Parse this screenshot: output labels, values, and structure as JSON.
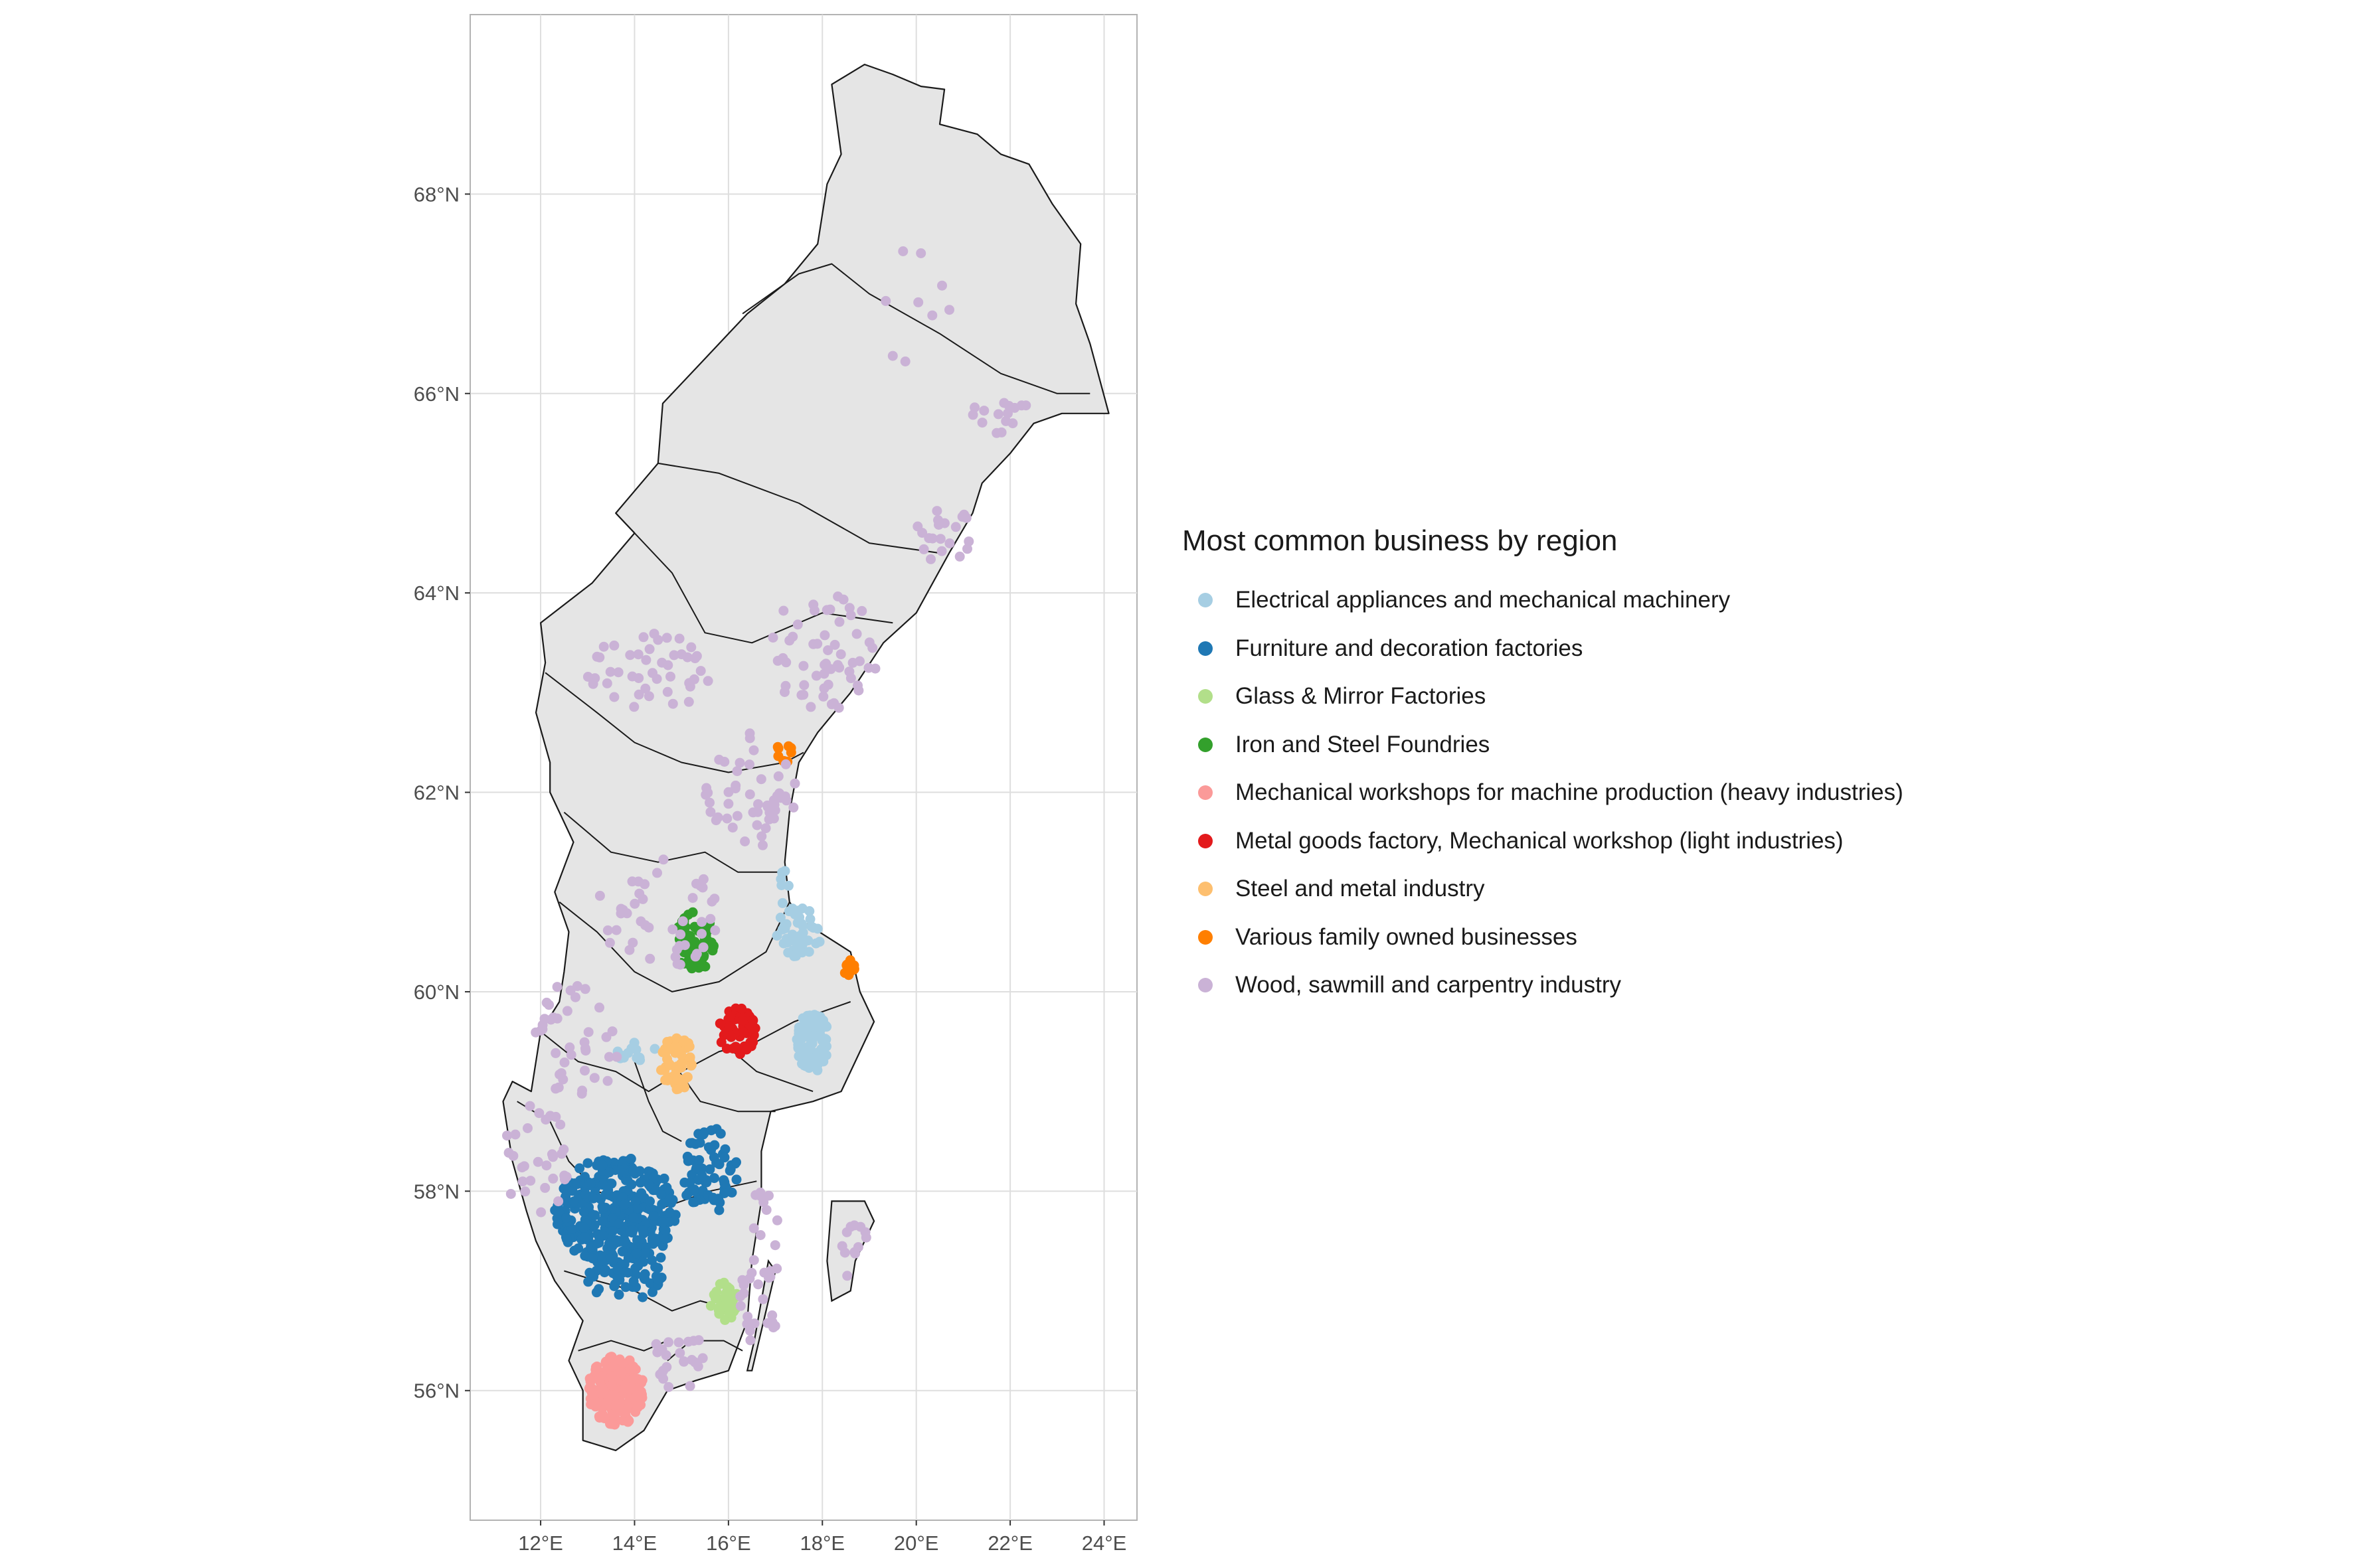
{
  "map": {
    "type": "scatter-map",
    "lon_range": [
      10.5,
      24.7
    ],
    "lat_range": [
      54.7,
      69.8
    ],
    "x_ticks": [
      {
        "value": 12,
        "label": "12°E"
      },
      {
        "value": 14,
        "label": "14°E"
      },
      {
        "value": 16,
        "label": "16°E"
      },
      {
        "value": 18,
        "label": "18°E"
      },
      {
        "value": 20,
        "label": "20°E"
      },
      {
        "value": 22,
        "label": "22°E"
      },
      {
        "value": 24,
        "label": "24°E"
      }
    ],
    "y_ticks": [
      {
        "value": 56,
        "label": "56°N"
      },
      {
        "value": 58,
        "label": "58°N"
      },
      {
        "value": 60,
        "label": "60°N"
      },
      {
        "value": 62,
        "label": "62°N"
      },
      {
        "value": 64,
        "label": "64°N"
      },
      {
        "value": 66,
        "label": "66°N"
      },
      {
        "value": 68,
        "label": "68°N"
      }
    ],
    "grid": true,
    "land_color": "#e5e5e5",
    "border_color": "#1a1a1a"
  },
  "legend": {
    "title": "Most common business by region",
    "position": "right",
    "items": [
      {
        "label": "Electrical appliances and mechanical machinery",
        "color": "#a6cee3"
      },
      {
        "label": "Furniture and decoration factories",
        "color": "#1f78b4"
      },
      {
        "label": "Glass & Mirror Factories",
        "color": "#b2df8a"
      },
      {
        "label": "Iron and Steel Foundries",
        "color": "#33a02c"
      },
      {
        "label": "Mechanical workshops for machine production (heavy industries)",
        "color": "#fb9a99"
      },
      {
        "label": "Metal goods factory, Mechanical workshop (light industries)",
        "color": "#e31a1c"
      },
      {
        "label": "Steel and metal industry",
        "color": "#fdbf6f"
      },
      {
        "label": "Various family owned businesses",
        "color": "#ff7f00"
      },
      {
        "label": "Wood, sawmill and carpentry industry",
        "color": "#cab2d6"
      }
    ]
  },
  "chart_data": {
    "type": "scatter",
    "x": "longitude",
    "y": "latitude",
    "series": [
      {
        "name": "Electrical appliances and mechanical machinery",
        "color": "#a6cee3",
        "clusters": [
          [
            17.8,
            59.5,
            0.35,
            0.3,
            90
          ],
          [
            17.5,
            60.6,
            0.5,
            0.25,
            45
          ],
          [
            14.0,
            59.4,
            0.45,
            0.1,
            12
          ],
          [
            17.2,
            61.1,
            0.1,
            0.25,
            6
          ]
        ]
      },
      {
        "name": "Furniture and decoration factories",
        "color": "#1f78b4",
        "clusters": [
          [
            13.6,
            57.8,
            1.3,
            0.55,
            330
          ],
          [
            15.6,
            58.2,
            0.6,
            0.45,
            70
          ],
          [
            13.8,
            57.2,
            0.9,
            0.3,
            60
          ]
        ]
      },
      {
        "name": "Glass & Mirror Factories",
        "color": "#b2df8a",
        "clusters": [
          [
            15.9,
            56.9,
            0.3,
            0.2,
            40
          ]
        ]
      },
      {
        "name": "Iron and Steel Foundries",
        "color": "#33a02c",
        "clusters": [
          [
            15.3,
            60.5,
            0.45,
            0.3,
            70
          ]
        ]
      },
      {
        "name": "Mechanical workshops for machine production (heavy industries)",
        "color": "#fb9a99",
        "clusters": [
          [
            13.6,
            56.0,
            0.6,
            0.35,
            190
          ]
        ]
      },
      {
        "name": "Metal goods factory, Mechanical workshop (light industries)",
        "color": "#e31a1c",
        "clusters": [
          [
            16.2,
            59.6,
            0.4,
            0.25,
            60
          ]
        ]
      },
      {
        "name": "Steel and metal industry",
        "color": "#fdbf6f",
        "clusters": [
          [
            14.9,
            59.3,
            0.35,
            0.3,
            60
          ]
        ]
      },
      {
        "name": "Various family owned businesses",
        "color": "#ff7f00",
        "clusters": [
          [
            18.6,
            60.2,
            0.12,
            0.12,
            12
          ],
          [
            17.2,
            62.4,
            0.2,
            0.1,
            10
          ]
        ]
      },
      {
        "name": "Wood, sawmill and carpentry industry",
        "color": "#cab2d6",
        "clusters": [
          [
            20.0,
            66.9,
            0.8,
            0.7,
            9
          ],
          [
            21.8,
            65.8,
            0.6,
            0.2,
            15
          ],
          [
            20.6,
            64.6,
            0.6,
            0.3,
            20
          ],
          [
            18.0,
            63.4,
            1.2,
            0.6,
            55
          ],
          [
            14.3,
            63.2,
            1.3,
            0.4,
            45
          ],
          [
            16.5,
            62.0,
            1.0,
            0.6,
            50
          ],
          [
            14.5,
            60.8,
            1.3,
            0.6,
            45
          ],
          [
            12.7,
            59.5,
            1.0,
            0.6,
            40
          ],
          [
            11.9,
            58.3,
            0.7,
            0.6,
            30
          ],
          [
            16.7,
            57.2,
            0.5,
            0.8,
            35
          ],
          [
            15.0,
            56.3,
            0.7,
            0.3,
            25
          ],
          [
            18.7,
            57.4,
            0.3,
            0.4,
            12
          ]
        ]
      }
    ]
  }
}
